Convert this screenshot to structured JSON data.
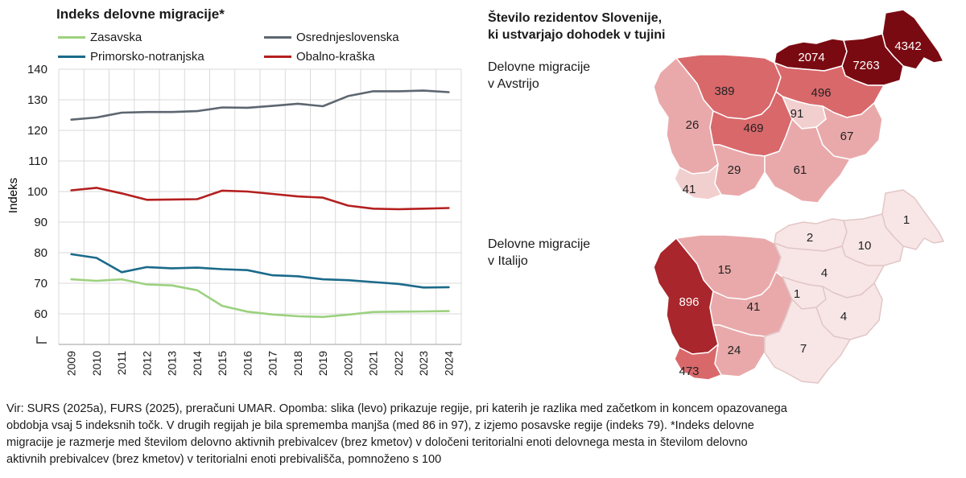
{
  "chart_data": {
    "type": "line",
    "title": "Indeks delovne migracije*",
    "ylabel": "Indeks",
    "ylim": [
      50,
      140
    ],
    "yticks": [
      "60",
      "70",
      "80",
      "90",
      "100",
      "110",
      "120",
      "130",
      "140"
    ],
    "x": [
      "2009",
      "2010",
      "2011",
      "2012",
      "2013",
      "2014",
      "2015",
      "2016",
      "2017",
      "2018",
      "2019",
      "2020",
      "2021",
      "2022",
      "2023",
      "2024"
    ],
    "grid": true,
    "legend_position": "top",
    "series": [
      {
        "name": "Zasavska",
        "color": "#9cd17f",
        "values": [
          71.3,
          70.8,
          71.3,
          69.6,
          69.3,
          67.7,
          62.6,
          60.7,
          59.8,
          59.2,
          59.0,
          59.7,
          60.6,
          60.7,
          60.8,
          60.9
        ]
      },
      {
        "name": "Osrednjeslovenska",
        "color": "#5d6670",
        "values": [
          123.5,
          124.2,
          125.8,
          126.0,
          126.0,
          126.3,
          127.5,
          127.4,
          128.0,
          128.7,
          127.9,
          131.2,
          132.8,
          132.8,
          133.0,
          132.5
        ]
      },
      {
        "name": "Primorsko-notranjska",
        "color": "#1b6a8a",
        "values": [
          79.5,
          78.3,
          73.6,
          75.3,
          74.9,
          75.1,
          74.6,
          74.3,
          72.6,
          72.3,
          71.3,
          71.0,
          70.4,
          69.8,
          68.6,
          68.7
        ]
      },
      {
        "name": "Obalno-kraška",
        "color": "#b41f1f",
        "values": [
          100.4,
          101.2,
          99.4,
          97.3,
          97.4,
          97.5,
          100.3,
          100.0,
          99.2,
          98.4,
          98.0,
          95.4,
          94.4,
          94.2,
          94.4,
          94.6
        ]
      }
    ]
  },
  "map": {
    "title_line1": "Število rezidentov Slovenije,",
    "title_line2": "ki ustvarjajo dohodek v tujini",
    "austria_label_line1": "Delovne migracije",
    "austria_label_line2": "v Avstrijo",
    "italy_label_line1": "Delovne migracije",
    "italy_label_line2": "v Italijo",
    "austria_values": {
      "koroska": "2074",
      "podravska": "7263",
      "pomurska": "4342",
      "gorenjska": "389",
      "savinjska": "496",
      "goriska": "26",
      "osrednjeslovenska": "469",
      "zasavska": "91",
      "posavska": "67",
      "primorsko_notranjska": "29",
      "jugovzhodna": "61",
      "obalno_kraska": "41"
    },
    "italy_values": {
      "koroska": "2",
      "podravska": "10",
      "pomurska": "1",
      "gorenjska": "15",
      "savinjska": "4",
      "goriska": "896",
      "osrednjeslovenska": "41",
      "zasavska": "1",
      "posavska": "4",
      "primorsko_notranjska": "24",
      "jugovzhodna": "7",
      "obalno_kraska": "473"
    },
    "colors": {
      "darkest": "#7a0a12",
      "dark": "#a8262c",
      "mid": "#d9686b",
      "light": "#e9a9aa",
      "lighter": "#f2cfcf",
      "lightest": "#f8e6e6"
    }
  },
  "footnote": {
    "line1": "Vir: SURS (2025a), FURS (2025), preračuni UMAR. Opomba: slika (levo) prikazuje regije, pri katerih je razlika med začetkom in koncem opazovanega",
    "line2": "obdobja vsaj 5 indeksnih točk. V drugih regijah je bila sprememba manjša (med 86 in 97), z izjemo posavske regije (indeks 79). *Indeks delovne",
    "line3": "migracije je razmerje med številom delovno aktivnih prebivalcev (brez kmetov) v določeni teritorialni enoti delovnega mesta in številom delovno",
    "line4": "aktivnih prebivalcev (brez kmetov) v teritorialni enoti prebivališča, pomnoženo s 100"
  }
}
